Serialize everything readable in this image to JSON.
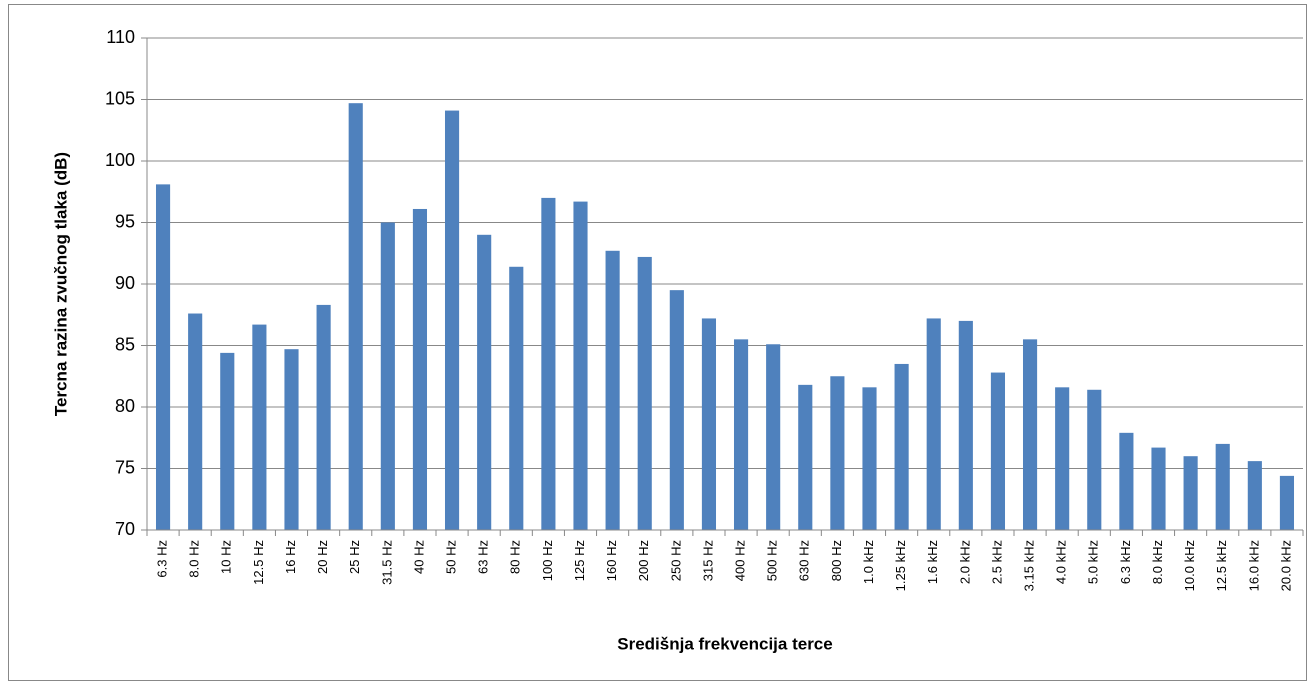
{
  "chart_data": {
    "type": "bar",
    "x_label": "Središnja frekvencija terce",
    "y_label": "Tercna razina zvučnog tlaka (dB)",
    "categories": [
      "6.3 Hz",
      "8.0 Hz",
      "10 Hz",
      "12.5 Hz",
      "16 Hz",
      "20 Hz",
      "25 Hz",
      "31.5 Hz",
      "40 Hz",
      "50 Hz",
      "63 Hz",
      "80 Hz",
      "100 Hz",
      "125 Hz",
      "160 Hz",
      "200 Hz",
      "250 Hz",
      "315 Hz",
      "400 Hz",
      "500 Hz",
      "630 Hz",
      "800 Hz",
      "1.0 kHz",
      "1.25 kHz",
      "1.6 kHz",
      "2.0 kHz",
      "2.5 kHz",
      "3.15 kHz",
      "4.0 kHz",
      "5.0 kHz",
      "6.3 kHz",
      "8.0 kHz",
      "10.0 kHz",
      "12.5 kHz",
      "16.0 kHz",
      "20.0 kHz"
    ],
    "values": [
      98.1,
      87.6,
      84.4,
      86.7,
      84.7,
      88.3,
      104.7,
      95.0,
      96.1,
      104.1,
      94.0,
      91.4,
      97.0,
      96.7,
      92.7,
      92.2,
      89.5,
      87.2,
      85.5,
      85.1,
      81.8,
      82.5,
      81.6,
      83.5,
      87.2,
      87.0,
      82.8,
      85.5,
      81.6,
      81.4,
      77.9,
      76.7,
      76.0,
      77.0,
      75.6,
      74.4
    ],
    "color": "#4f81bd",
    "ylim": [
      70,
      110
    ],
    "yticks": [
      70,
      75,
      80,
      85,
      90,
      95,
      100,
      105,
      110
    ],
    "grid": true
  }
}
